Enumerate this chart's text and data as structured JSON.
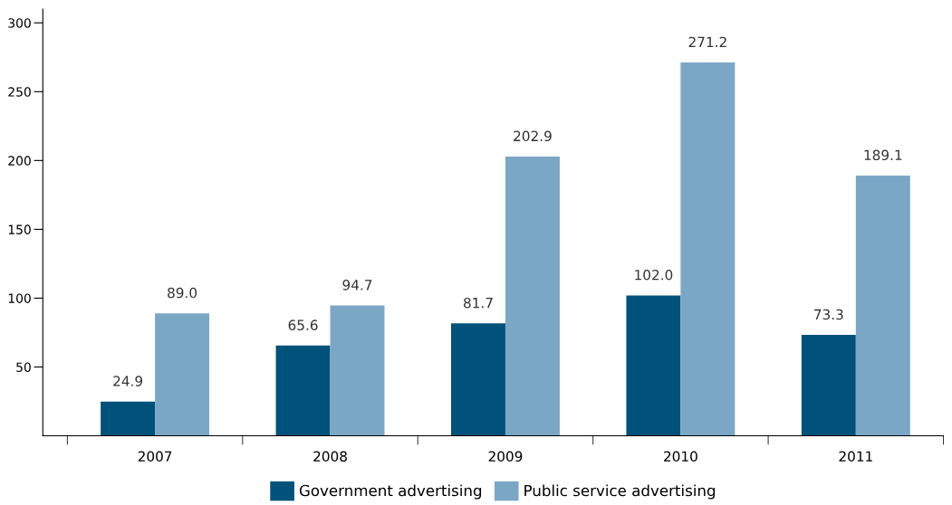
{
  "chart_data": {
    "type": "bar",
    "categories": [
      "2007",
      "2008",
      "2009",
      "2010",
      "2011"
    ],
    "series": [
      {
        "name": "Government advertising",
        "color": "#00527a",
        "values": [
          24.9,
          65.6,
          81.7,
          102.0,
          73.3
        ],
        "value_labels": [
          "24.9",
          "65.6",
          "81.7",
          "102.0",
          "73.3"
        ]
      },
      {
        "name": "Public service advertising",
        "color": "#7ba7c7",
        "values": [
          89.0,
          94.7,
          202.9,
          271.2,
          189.1
        ],
        "value_labels": [
          "89.0",
          "94.7",
          "202.9",
          "271.2",
          "189.1"
        ]
      }
    ],
    "ylim": [
      0,
      310
    ],
    "yticks": [
      50,
      100,
      150,
      200,
      250,
      300
    ],
    "grid": false,
    "legend": "bottom"
  }
}
